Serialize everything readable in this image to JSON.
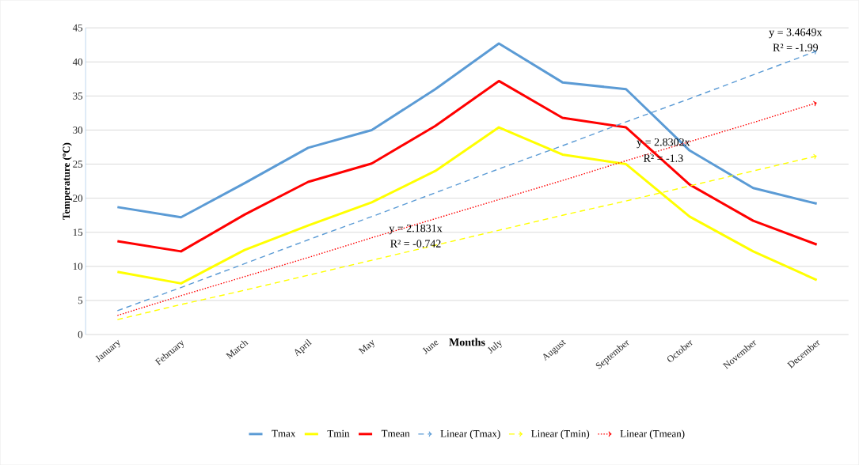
{
  "chart_data": {
    "type": "line",
    "xlabel": "Months",
    "ylabel": "Temperature (ºC)",
    "categories": [
      "January",
      "February",
      "March",
      "April",
      "May",
      "June",
      "July",
      "August",
      "September",
      "October",
      "November",
      "December"
    ],
    "series": [
      {
        "name": "Tmax",
        "color": "#5b9bd5",
        "values": [
          18.7,
          17.2,
          22.2,
          27.4,
          30.0,
          36.0,
          42.7,
          37.0,
          36.0,
          27.0,
          21.5,
          19.2
        ]
      },
      {
        "name": "Tmin",
        "color": "#ffff00",
        "values": [
          9.2,
          7.5,
          12.4,
          16.0,
          19.4,
          24.0,
          30.4,
          26.4,
          25.0,
          17.3,
          12.2,
          8.0
        ]
      },
      {
        "name": "Tmean",
        "color": "#ff0000",
        "values": [
          13.7,
          12.2,
          17.6,
          22.4,
          25.1,
          30.6,
          37.2,
          31.8,
          30.4,
          22.0,
          16.7,
          13.2
        ]
      },
      {
        "name": "Linear (Tmax)",
        "color": "#5b9bd5",
        "line_style": "dashed",
        "values": [
          3.5,
          6.9,
          10.4,
          13.9,
          17.3,
          20.8,
          24.3,
          27.7,
          31.2,
          34.6,
          38.1,
          41.6
        ]
      },
      {
        "name": "Linear (Tmin)",
        "color": "#ffff00",
        "line_style": "dashed",
        "values": [
          2.2,
          4.4,
          6.5,
          8.7,
          10.9,
          13.1,
          15.3,
          17.5,
          19.6,
          21.8,
          24.0,
          26.2
        ]
      },
      {
        "name": "Linear (Tmean)",
        "color": "#ff0000",
        "line_style": "dotted",
        "values": [
          2.8,
          5.7,
          8.5,
          11.3,
          14.2,
          17.0,
          19.8,
          22.6,
          25.5,
          28.3,
          31.1,
          34.0
        ]
      }
    ],
    "annotations": [
      "y = 3.4649x",
      "R² = -1.99",
      "y = 2.8302x",
      "R² = -1.3",
      "y = 2.1831x",
      "R² = -0.742"
    ],
    "ylim": [
      0,
      45
    ],
    "yticks": [
      0,
      5,
      10,
      15,
      20,
      25,
      30,
      35,
      40,
      45
    ],
    "grid": "y",
    "legend": "bottom",
    "marker": "none",
    "line_style": "solid"
  }
}
